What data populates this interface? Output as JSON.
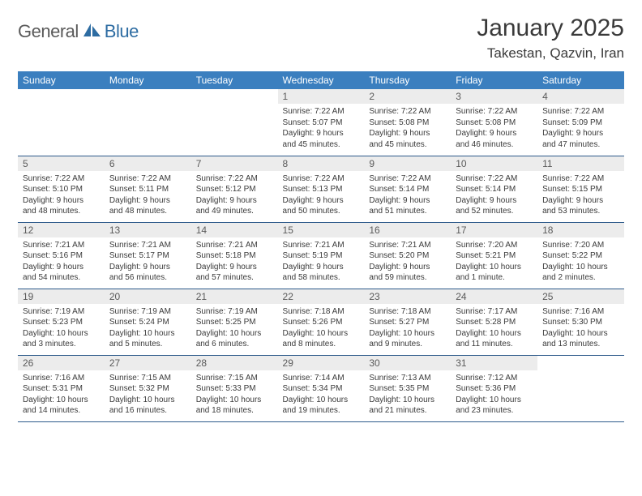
{
  "brand": {
    "text1": "General",
    "text2": "Blue"
  },
  "title": "January 2025",
  "location": "Takestan, Qazvin, Iran",
  "colors": {
    "header_bg": "#3b7fbf",
    "header_text": "#ffffff",
    "day_bar_bg": "#ececec",
    "day_bar_text": "#5a5a5a",
    "border": "#2d5a8a",
    "body_text": "#3a3a3a",
    "brand_blue": "#2d6ca2"
  },
  "day_headers": [
    "Sunday",
    "Monday",
    "Tuesday",
    "Wednesday",
    "Thursday",
    "Friday",
    "Saturday"
  ],
  "weeks": [
    [
      {
        "day": "",
        "lines": []
      },
      {
        "day": "",
        "lines": []
      },
      {
        "day": "",
        "lines": []
      },
      {
        "day": "1",
        "lines": [
          "Sunrise: 7:22 AM",
          "Sunset: 5:07 PM",
          "Daylight: 9 hours",
          "and 45 minutes."
        ]
      },
      {
        "day": "2",
        "lines": [
          "Sunrise: 7:22 AM",
          "Sunset: 5:08 PM",
          "Daylight: 9 hours",
          "and 45 minutes."
        ]
      },
      {
        "day": "3",
        "lines": [
          "Sunrise: 7:22 AM",
          "Sunset: 5:08 PM",
          "Daylight: 9 hours",
          "and 46 minutes."
        ]
      },
      {
        "day": "4",
        "lines": [
          "Sunrise: 7:22 AM",
          "Sunset: 5:09 PM",
          "Daylight: 9 hours",
          "and 47 minutes."
        ]
      }
    ],
    [
      {
        "day": "5",
        "lines": [
          "Sunrise: 7:22 AM",
          "Sunset: 5:10 PM",
          "Daylight: 9 hours",
          "and 48 minutes."
        ]
      },
      {
        "day": "6",
        "lines": [
          "Sunrise: 7:22 AM",
          "Sunset: 5:11 PM",
          "Daylight: 9 hours",
          "and 48 minutes."
        ]
      },
      {
        "day": "7",
        "lines": [
          "Sunrise: 7:22 AM",
          "Sunset: 5:12 PM",
          "Daylight: 9 hours",
          "and 49 minutes."
        ]
      },
      {
        "day": "8",
        "lines": [
          "Sunrise: 7:22 AM",
          "Sunset: 5:13 PM",
          "Daylight: 9 hours",
          "and 50 minutes."
        ]
      },
      {
        "day": "9",
        "lines": [
          "Sunrise: 7:22 AM",
          "Sunset: 5:14 PM",
          "Daylight: 9 hours",
          "and 51 minutes."
        ]
      },
      {
        "day": "10",
        "lines": [
          "Sunrise: 7:22 AM",
          "Sunset: 5:14 PM",
          "Daylight: 9 hours",
          "and 52 minutes."
        ]
      },
      {
        "day": "11",
        "lines": [
          "Sunrise: 7:22 AM",
          "Sunset: 5:15 PM",
          "Daylight: 9 hours",
          "and 53 minutes."
        ]
      }
    ],
    [
      {
        "day": "12",
        "lines": [
          "Sunrise: 7:21 AM",
          "Sunset: 5:16 PM",
          "Daylight: 9 hours",
          "and 54 minutes."
        ]
      },
      {
        "day": "13",
        "lines": [
          "Sunrise: 7:21 AM",
          "Sunset: 5:17 PM",
          "Daylight: 9 hours",
          "and 56 minutes."
        ]
      },
      {
        "day": "14",
        "lines": [
          "Sunrise: 7:21 AM",
          "Sunset: 5:18 PM",
          "Daylight: 9 hours",
          "and 57 minutes."
        ]
      },
      {
        "day": "15",
        "lines": [
          "Sunrise: 7:21 AM",
          "Sunset: 5:19 PM",
          "Daylight: 9 hours",
          "and 58 minutes."
        ]
      },
      {
        "day": "16",
        "lines": [
          "Sunrise: 7:21 AM",
          "Sunset: 5:20 PM",
          "Daylight: 9 hours",
          "and 59 minutes."
        ]
      },
      {
        "day": "17",
        "lines": [
          "Sunrise: 7:20 AM",
          "Sunset: 5:21 PM",
          "Daylight: 10 hours",
          "and 1 minute."
        ]
      },
      {
        "day": "18",
        "lines": [
          "Sunrise: 7:20 AM",
          "Sunset: 5:22 PM",
          "Daylight: 10 hours",
          "and 2 minutes."
        ]
      }
    ],
    [
      {
        "day": "19",
        "lines": [
          "Sunrise: 7:19 AM",
          "Sunset: 5:23 PM",
          "Daylight: 10 hours",
          "and 3 minutes."
        ]
      },
      {
        "day": "20",
        "lines": [
          "Sunrise: 7:19 AM",
          "Sunset: 5:24 PM",
          "Daylight: 10 hours",
          "and 5 minutes."
        ]
      },
      {
        "day": "21",
        "lines": [
          "Sunrise: 7:19 AM",
          "Sunset: 5:25 PM",
          "Daylight: 10 hours",
          "and 6 minutes."
        ]
      },
      {
        "day": "22",
        "lines": [
          "Sunrise: 7:18 AM",
          "Sunset: 5:26 PM",
          "Daylight: 10 hours",
          "and 8 minutes."
        ]
      },
      {
        "day": "23",
        "lines": [
          "Sunrise: 7:18 AM",
          "Sunset: 5:27 PM",
          "Daylight: 10 hours",
          "and 9 minutes."
        ]
      },
      {
        "day": "24",
        "lines": [
          "Sunrise: 7:17 AM",
          "Sunset: 5:28 PM",
          "Daylight: 10 hours",
          "and 11 minutes."
        ]
      },
      {
        "day": "25",
        "lines": [
          "Sunrise: 7:16 AM",
          "Sunset: 5:30 PM",
          "Daylight: 10 hours",
          "and 13 minutes."
        ]
      }
    ],
    [
      {
        "day": "26",
        "lines": [
          "Sunrise: 7:16 AM",
          "Sunset: 5:31 PM",
          "Daylight: 10 hours",
          "and 14 minutes."
        ]
      },
      {
        "day": "27",
        "lines": [
          "Sunrise: 7:15 AM",
          "Sunset: 5:32 PM",
          "Daylight: 10 hours",
          "and 16 minutes."
        ]
      },
      {
        "day": "28",
        "lines": [
          "Sunrise: 7:15 AM",
          "Sunset: 5:33 PM",
          "Daylight: 10 hours",
          "and 18 minutes."
        ]
      },
      {
        "day": "29",
        "lines": [
          "Sunrise: 7:14 AM",
          "Sunset: 5:34 PM",
          "Daylight: 10 hours",
          "and 19 minutes."
        ]
      },
      {
        "day": "30",
        "lines": [
          "Sunrise: 7:13 AM",
          "Sunset: 5:35 PM",
          "Daylight: 10 hours",
          "and 21 minutes."
        ]
      },
      {
        "day": "31",
        "lines": [
          "Sunrise: 7:12 AM",
          "Sunset: 5:36 PM",
          "Daylight: 10 hours",
          "and 23 minutes."
        ]
      },
      {
        "day": "",
        "lines": []
      }
    ]
  ]
}
